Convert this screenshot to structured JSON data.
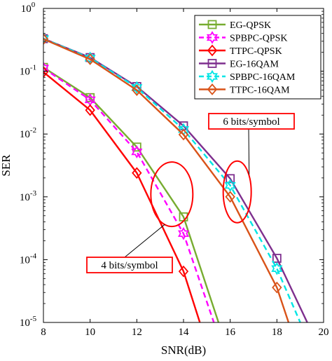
{
  "chart_data": {
    "type": "line",
    "xlabel": "SNR(dB)",
    "ylabel": "SER",
    "xlim": [
      8,
      20
    ],
    "ylim": [
      1e-05,
      1
    ],
    "yscale": "log",
    "grid": false,
    "legend_position": "top-right",
    "x_ticks": [
      "8",
      "10",
      "12",
      "14",
      "16",
      "18",
      "20"
    ],
    "y_ticks": [
      {
        "value": 1,
        "base": "10",
        "exp": "0"
      },
      {
        "value": 0.1,
        "base": "10",
        "exp": "-1"
      },
      {
        "value": 0.01,
        "base": "10",
        "exp": "-2"
      },
      {
        "value": 0.001,
        "base": "10",
        "exp": "-3"
      },
      {
        "value": 0.0001,
        "base": "10",
        "exp": "-4"
      },
      {
        "value": 1e-05,
        "base": "10",
        "exp": "-5"
      }
    ],
    "series": [
      {
        "name": "EG-QPSK",
        "color": "#77ac30",
        "dash": "solid",
        "marker": "square",
        "x": [
          8,
          10,
          12,
          14,
          15.5
        ],
        "y": [
          0.115,
          0.038,
          0.0062,
          0.00048,
          1e-05
        ]
      },
      {
        "name": "SPBPC-QPSK",
        "color": "#ff00ff",
        "dash": "dashed",
        "marker": "hexagram",
        "x": [
          8,
          10,
          12,
          14,
          15.3
        ],
        "y": [
          0.112,
          0.035,
          0.0052,
          0.00026,
          1e-05
        ]
      },
      {
        "name": "TTPC-QPSK",
        "color": "#ff0000",
        "dash": "solid",
        "marker": "diamond",
        "x": [
          8,
          10,
          12,
          14,
          14.7
        ],
        "y": [
          0.097,
          0.024,
          0.0024,
          6.5e-05,
          1e-05
        ]
      },
      {
        "name": "EG-16QAM",
        "color": "#7e2f8e",
        "dash": "solid",
        "marker": "square",
        "x": [
          8,
          10,
          12,
          14,
          16,
          18,
          19.3
        ],
        "y": [
          0.33,
          0.165,
          0.057,
          0.0135,
          0.00195,
          0.000105,
          1e-05
        ]
      },
      {
        "name": "SPBPC-16QAM",
        "color": "#00e5e5",
        "dash": "dashed",
        "marker": "hexagram",
        "x": [
          8,
          10,
          12,
          14,
          16,
          18,
          19.0
        ],
        "y": [
          0.33,
          0.162,
          0.055,
          0.0118,
          0.00152,
          7.2e-05,
          1e-05
        ]
      },
      {
        "name": "TTPC-16QAM",
        "color": "#d95319",
        "dash": "solid",
        "marker": "diamond",
        "x": [
          8,
          10,
          12,
          14,
          16,
          18,
          18.5
        ],
        "y": [
          0.325,
          0.155,
          0.05,
          0.0098,
          0.001,
          3.6e-05,
          1e-05
        ]
      }
    ],
    "annotations": [
      {
        "text": "6 bits/symbol",
        "ellipse_center": [
          16.3,
          0.0012
        ]
      },
      {
        "text": "4 bits/symbol",
        "ellipse_center": [
          13.5,
          0.0011
        ]
      }
    ]
  }
}
